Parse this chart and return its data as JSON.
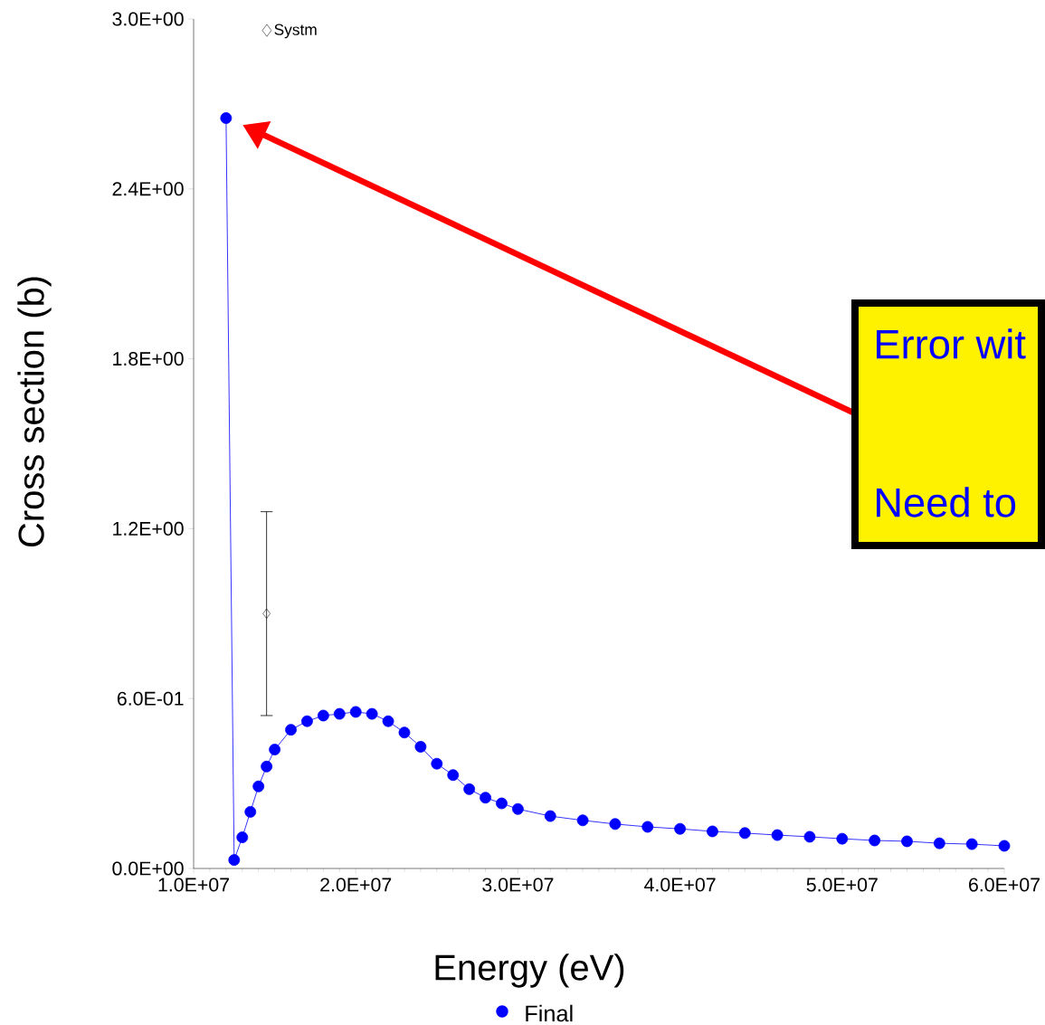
{
  "chart_data": {
    "type": "line",
    "xlabel": "Energy (eV)",
    "ylabel": "Cross section (b)",
    "xlim": [
      10000000,
      60000000
    ],
    "xticks": [
      {
        "value": 10000000,
        "label": "1.0E+07"
      },
      {
        "value": 20000000,
        "label": "2.0E+07"
      },
      {
        "value": 30000000,
        "label": "3.0E+07"
      },
      {
        "value": 40000000,
        "label": "4.0E+07"
      },
      {
        "value": 50000000,
        "label": "5.0E+07"
      },
      {
        "value": 60000000,
        "label": "6.0E+07"
      }
    ],
    "ylim": [
      0,
      3
    ],
    "yticks": [
      {
        "value": 0,
        "label": "0.0E+00"
      },
      {
        "value": 0.6,
        "label": "6.0E-01"
      },
      {
        "value": 1.2,
        "label": "1.2E+00"
      },
      {
        "value": 1.8,
        "label": "1.8E+00"
      },
      {
        "value": 2.4,
        "label": "2.4E+00"
      },
      {
        "value": 3,
        "label": "3.0E+00"
      }
    ],
    "grid": false,
    "legend": "bottom",
    "marker": "circle",
    "line_style": "solid",
    "annotations": [
      "Error wit",
      "Need to"
    ],
    "series": [
      {
        "name": "Systm",
        "type": "scatter",
        "marker": "diamond",
        "color": "#000000",
        "x": [
          14500000
        ],
        "values": [
          0.9
        ],
        "errors": [
          [
            0.54,
            1.26
          ]
        ]
      },
      {
        "name": "Final",
        "color": "#0000ff",
        "x": [
          12000000,
          12500000,
          13000000,
          13500000,
          14000000,
          14500000,
          15000000,
          16000000,
          17000000,
          18000000,
          19000000,
          20000000,
          21000000,
          22000000,
          23000000,
          24000000,
          25000000,
          26000000,
          27000000,
          28000000,
          29000000,
          30000000,
          32000000,
          34000000,
          36000000,
          38000000,
          40000000,
          42000000,
          44000000,
          46000000,
          48000000,
          50000000,
          52000000,
          54000000,
          56000000,
          58000000,
          60000000
        ],
        "values": [
          2.65,
          0.03,
          0.11,
          0.2,
          0.29,
          0.36,
          0.42,
          0.49,
          0.52,
          0.54,
          0.546,
          0.553,
          0.546,
          0.52,
          0.48,
          0.43,
          0.37,
          0.33,
          0.28,
          0.25,
          0.23,
          0.21,
          0.185,
          0.17,
          0.157,
          0.147,
          0.14,
          0.131,
          0.125,
          0.118,
          0.112,
          0.105,
          0.099,
          0.096,
          0.089,
          0.086,
          0.08
        ]
      }
    ]
  }
}
